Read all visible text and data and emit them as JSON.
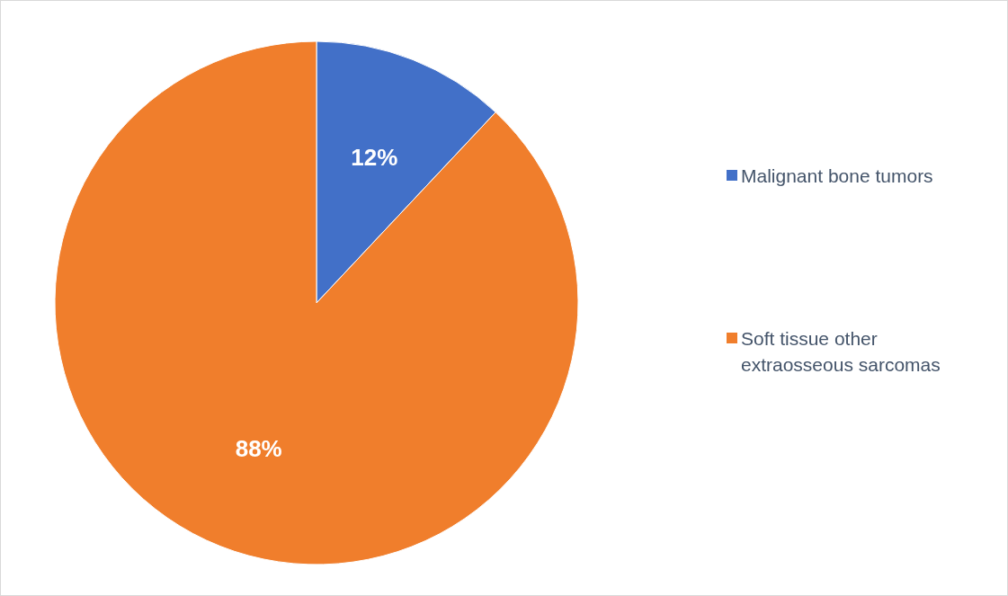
{
  "chart_data": {
    "type": "pie",
    "categories": [
      "Malignant bone tumors",
      "Soft tissue other extraosseous sarcomas"
    ],
    "values": [
      12,
      88
    ],
    "colors": [
      "#4270c8",
      "#f07e2c"
    ],
    "value_labels": [
      "12%",
      "88%"
    ],
    "legend": "right"
  }
}
